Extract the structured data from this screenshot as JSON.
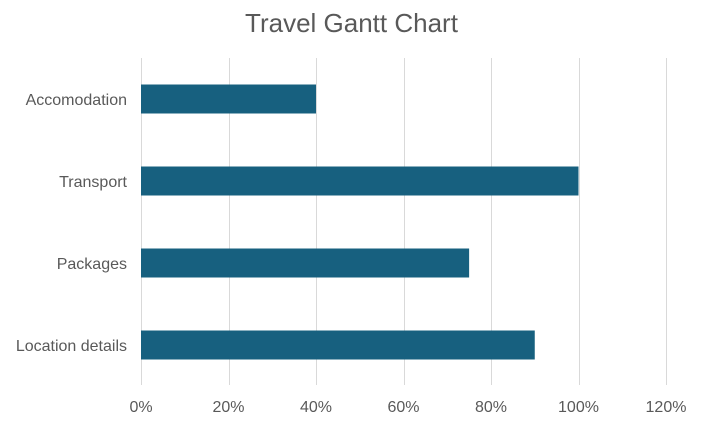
{
  "chart_data": {
    "type": "bar",
    "orientation": "horizontal",
    "title": "Travel Gantt Chart",
    "xlabel": "",
    "ylabel": "",
    "categories": [
      "Accomodation",
      "Transport",
      "Packages",
      "Location details"
    ],
    "values": [
      0.4,
      1.0,
      0.75,
      0.9
    ],
    "xlim": [
      0,
      1.2
    ],
    "xticks": [
      0,
      0.2,
      0.4,
      0.6,
      0.8,
      1.0,
      1.2
    ],
    "xtick_labels": [
      "0%",
      "20%",
      "40%",
      "60%",
      "80%",
      "100%",
      "120%"
    ],
    "grid": "vertical",
    "legend": "none",
    "bar_color": "#17607f",
    "grid_color": "#d9d9d9"
  }
}
